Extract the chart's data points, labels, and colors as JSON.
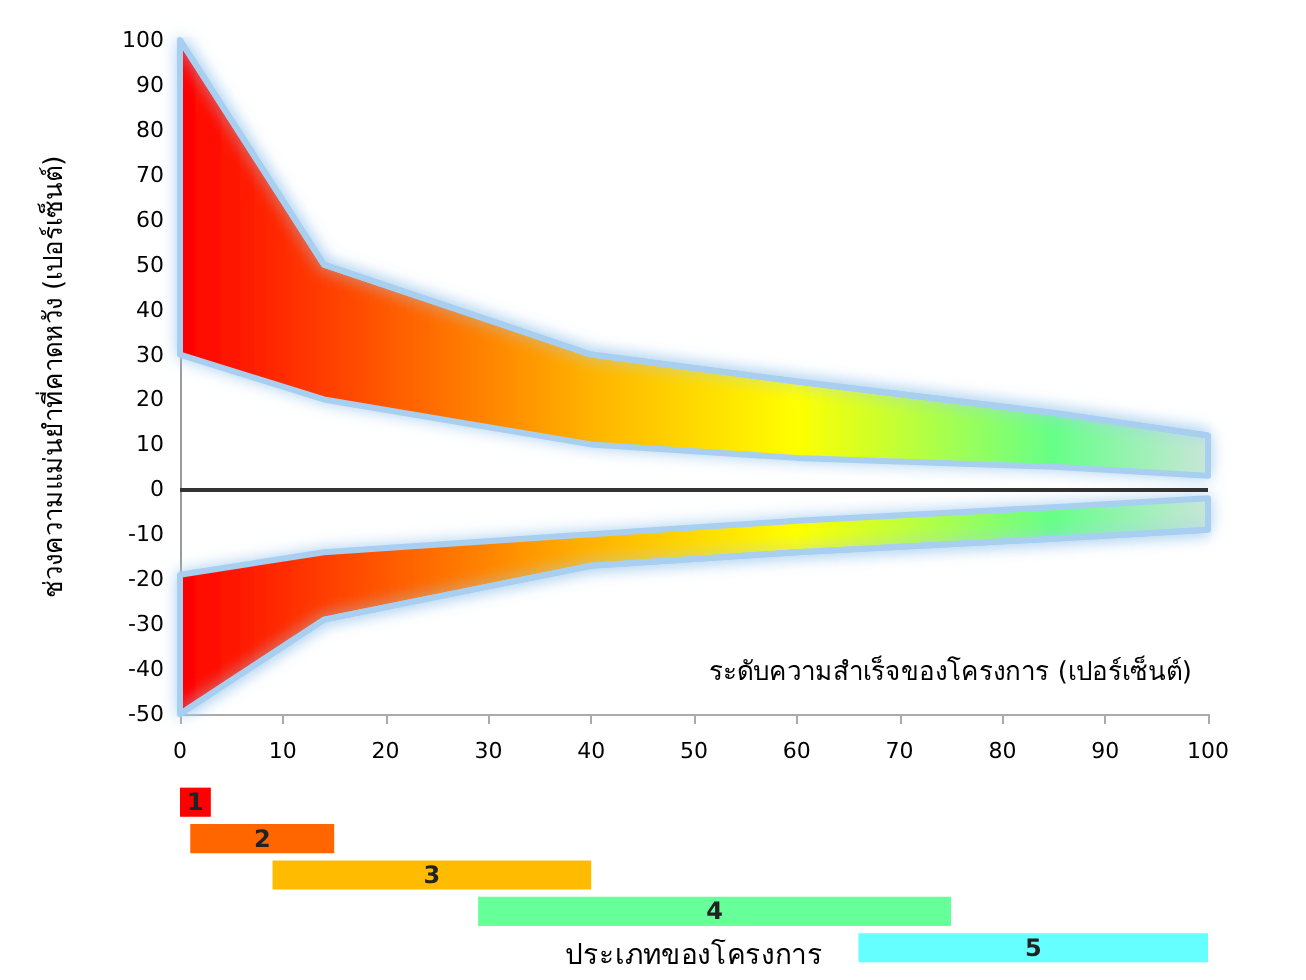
{
  "chart_data": [
    {
      "type": "line",
      "xlabel": "ระดับความสำเร็จของโครงการ (เปอร์เซ็นต์)",
      "ylabel": "ช่วงความแม่นยำที่คาดหวัง (เปอร์เซ็นต์)",
      "x": [
        0,
        14,
        40,
        60,
        85,
        100
      ],
      "series": [
        {
          "color": "#a8cff0",
          "colors": [
            "#ff0000",
            "#ff3d00",
            "#ffb300",
            "#ffff00",
            "#66ff88",
            "#c8e6d8"
          ],
          "values": [
            100,
            50,
            30,
            24,
            17,
            12
          ],
          "upper": [
            100,
            50,
            30,
            24,
            17,
            12
          ],
          "lower": [
            30,
            20,
            10,
            7,
            5,
            3
          ]
        },
        {
          "color": "#a8cff0",
          "colors": [
            "#ff0000",
            "#ff3d00",
            "#ffb300",
            "#ffff00",
            "#66ff88",
            "#c8e6d8"
          ],
          "values": [
            -50,
            -29,
            -17,
            -14,
            -11,
            -9
          ],
          "upper": [
            -19,
            -14,
            -10,
            -7,
            -4,
            -2
          ],
          "lower": [
            -50,
            -29,
            -17,
            -14,
            -11,
            -9
          ]
        }
      ],
      "xlim": [
        0,
        100
      ],
      "xticks": [
        0,
        10,
        20,
        30,
        40,
        50,
        60,
        70,
        80,
        90,
        100
      ],
      "ylim": [
        -50,
        100
      ],
      "yticks": [
        -50,
        -40,
        -30,
        -20,
        -10,
        0,
        10,
        20,
        30,
        40,
        50,
        60,
        70,
        80,
        90,
        100
      ],
      "ref_lines": [
        {
          "axis": "y",
          "value": 0,
          "color": "#333333"
        }
      ],
      "grid": false
    },
    {
      "type": "bar",
      "orientation": "horizontal",
      "xlabel": "ประเภทของโครงการ",
      "categories": [
        "1",
        "2",
        "3",
        "4",
        "5"
      ],
      "base": [
        0,
        1,
        9,
        29,
        66
      ],
      "values": [
        3,
        14,
        31,
        46,
        34
      ],
      "colors": [
        "#ff0000",
        "#ff6600",
        "#ffbb00",
        "#66ff99",
        "#66ffff"
      ],
      "xlim": [
        0,
        100
      ],
      "tick_labels": false,
      "grid": false
    }
  ]
}
